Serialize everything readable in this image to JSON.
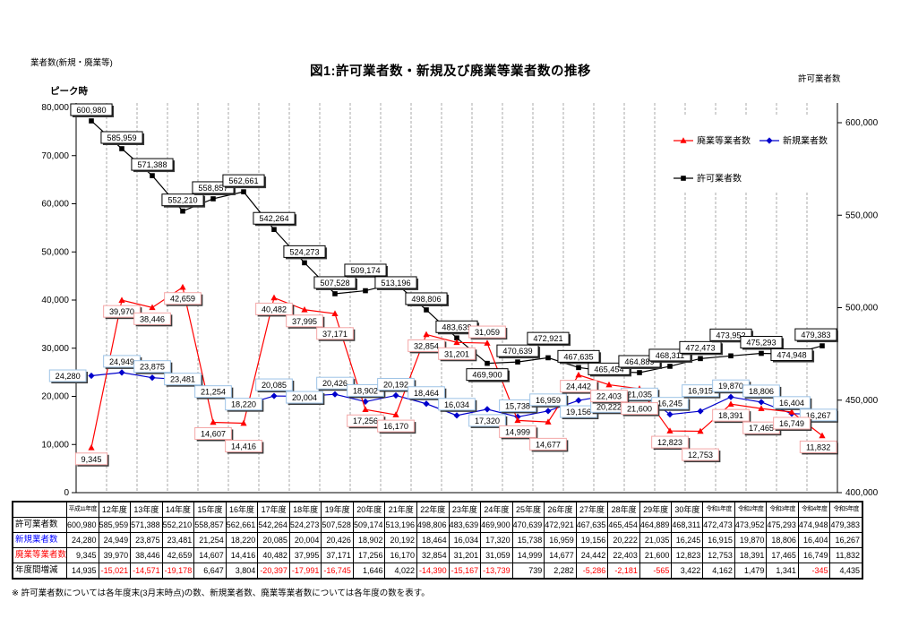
{
  "header": {
    "title": "図1:許可業者数・新規及び廃業等業者数の推移",
    "left_axis_title": "業者数(新規・廃業等)",
    "right_axis_title": "許可業者数",
    "peak_annotation": "ピーク時"
  },
  "chart_data": {
    "type": "line",
    "categories": [
      "平成11年度",
      "12年度",
      "13年度",
      "14年度",
      "15年度",
      "16年度",
      "17年度",
      "18年度",
      "19年度",
      "20年度",
      "21年度",
      "22年度",
      "23年度",
      "24年度",
      "25年度",
      "26年度",
      "27年度",
      "28年度",
      "29年度",
      "30年度",
      "令和1年度",
      "令和2年度",
      "令和3年度",
      "令和4年度",
      "令和5年度"
    ],
    "series": [
      {
        "name": "許可業者数",
        "axis": "right",
        "color": "#000000",
        "marker": "square",
        "box_border": "#000000",
        "label_default": "above",
        "label_exceptions": {
          "13": "below"
        },
        "values": [
          600980,
          585959,
          571388,
          552210,
          558857,
          562661,
          542264,
          524273,
          507528,
          509174,
          513196,
          498806,
          483639,
          469900,
          470639,
          472921,
          467635,
          465454,
          464889,
          468311,
          472473,
          473952,
          475293,
          474948,
          479383
        ]
      },
      {
        "name": "新規業者数",
        "axis": "left",
        "color": "#0000cc",
        "marker": "diamond",
        "box_border": "#9dc3e6",
        "label_default": "above",
        "label_exceptions": {
          "0": "left",
          "13": "below",
          "16": "below",
          "17": "below",
          "18": "below"
        },
        "values": [
          24280,
          24949,
          23875,
          23481,
          21254,
          18220,
          20085,
          20004,
          20426,
          18902,
          20192,
          18464,
          16034,
          17320,
          15738,
          16959,
          19156,
          20222,
          21035,
          16245,
          16915,
          19870,
          18806,
          16404,
          16267
        ]
      },
      {
        "name": "廃業等業者数",
        "axis": "left",
        "color": "#ff0000",
        "marker": "triangle",
        "box_border": "#f4a7a7",
        "label_default": "below",
        "label_exceptions": {
          "13": "above"
        },
        "values": [
          9345,
          39970,
          38446,
          42659,
          14607,
          14416,
          40482,
          37995,
          37171,
          17256,
          16170,
          32854,
          31201,
          31059,
          14999,
          14677,
          24442,
          22403,
          21600,
          12823,
          12753,
          18391,
          17465,
          16749,
          11832
        ]
      }
    ],
    "left_axis": {
      "min": 0,
      "max": 80000,
      "tick_labels": [
        "0",
        "10,000",
        "20,000",
        "30,000",
        "40,000",
        "50,000",
        "60,000",
        "70,000",
        "80,000"
      ]
    },
    "right_axis": {
      "min": 400000,
      "max": 600000,
      "tick_labels": [
        "400,000",
        "450,000",
        "500,000",
        "550,000",
        "600,000"
      ]
    },
    "legend": {
      "order": [
        "廃業等業者数",
        "新規業者数",
        "許可業者数"
      ],
      "position": "upper-right"
    },
    "grid": "vertical"
  },
  "table": {
    "corner": "",
    "row_labels": [
      {
        "label": "許可業者数",
        "color": "#000000",
        "series": 0
      },
      {
        "label": "新規業者数",
        "color": "#0000ff",
        "series": 1
      },
      {
        "label": "廃業等業者数",
        "color": "#ff0000",
        "series": 2
      },
      {
        "label": "年度間増減",
        "color": "#000000",
        "series": null
      }
    ],
    "yoy_change": [
      14935,
      -15021,
      -14571,
      -19178,
      6647,
      3804,
      -20397,
      -17991,
      -16745,
      1646,
      4022,
      -14390,
      -15167,
      -13739,
      739,
      2282,
      -5286,
      -2181,
      -565,
      3422,
      4162,
      1479,
      1341,
      -345,
      4435
    ]
  },
  "footnote": "※ 許可業者数については各年度末(3月末時点)の数、新規業者数、廃業等業者数については各年度の数を表す。"
}
